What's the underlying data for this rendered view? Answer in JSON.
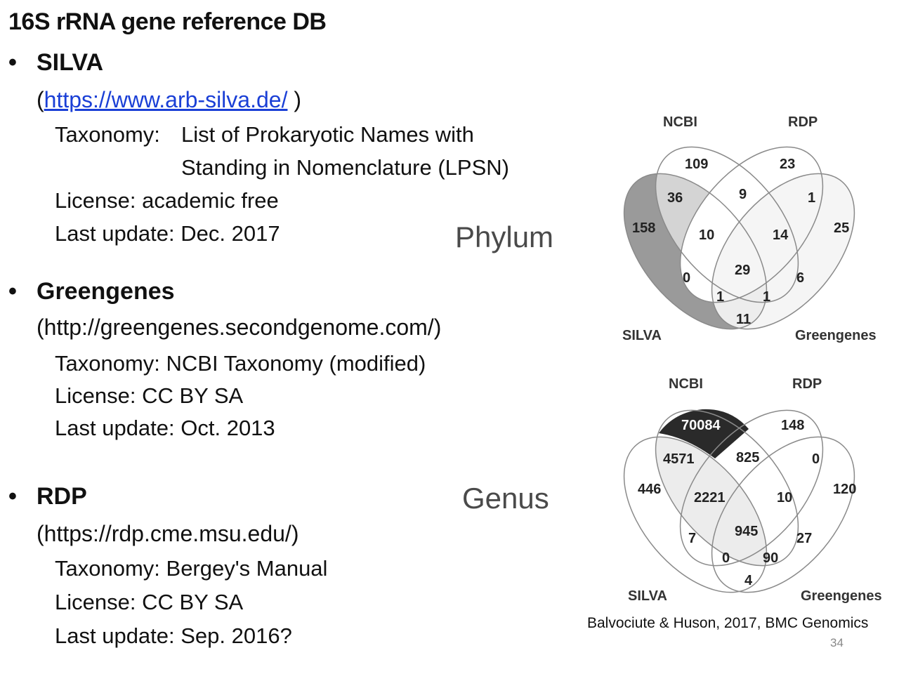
{
  "title": "16S rRNA gene reference DB",
  "databases": [
    {
      "bullet": "•",
      "name": "SILVA",
      "url_open": "(",
      "url": "https://www.arb-silva.de/",
      "url_close": " )",
      "taxonomy_key": "Taxonomy:",
      "taxonomy_line1": "List of Prokaryotic Names with",
      "taxonomy_line2": "Standing in Nomenclature (LPSN)",
      "license": "License: academic free",
      "last_update": "Last update: Dec. 2017"
    },
    {
      "bullet": "•",
      "name": "Greengenes",
      "url_text": "(http://greengenes.secondgenome.com/)",
      "taxonomy": "Taxonomy: NCBI Taxonomy (modified)",
      "license": "License: CC BY SA",
      "last_update": "Last update: Oct. 2013"
    },
    {
      "bullet": "•",
      "name": "RDP",
      "url_text": "(https://rdp.cme.msu.edu/)",
      "taxonomy": "Taxonomy: Bergey's Manual",
      "license": "License: CC BY SA",
      "last_update": "Last update: Sep. 2016?"
    }
  ],
  "venn_phylum": {
    "rank_label": "Phylum",
    "set_labels": {
      "ncbi": "NCBI",
      "rdp": "RDP",
      "silva": "SILVA",
      "greengenes": "Greengenes"
    },
    "regions": {
      "ncbi_only": "109",
      "rdp_only": "23",
      "silva_only": "158",
      "greengenes_only": "25",
      "silva_ncbi": "36",
      "ncbi_rdp": "9",
      "rdp_greengenes": "1",
      "silva_ncbi_rdp": "10",
      "ncbi_rdp_greengenes": "14",
      "all_four": "29",
      "silva_rdp": "0",
      "ncbi_greengenes": "6",
      "silva_rdp_greengenes": "1",
      "silva_ncbi_greengenes": "1",
      "silva_greengenes": "11"
    }
  },
  "venn_genus": {
    "rank_label": "Genus",
    "set_labels": {
      "ncbi": "NCBI",
      "rdp": "RDP",
      "silva": "SILVA",
      "greengenes": "Greengenes"
    },
    "regions": {
      "ncbi_only": "70084",
      "rdp_only": "148",
      "silva_only": "446",
      "greengenes_only": "120",
      "silva_ncbi": "4571",
      "ncbi_rdp": "825",
      "rdp_greengenes": "0",
      "silva_ncbi_rdp": "2221",
      "ncbi_rdp_greengenes": "10",
      "all_four": "945",
      "silva_rdp": "7",
      "ncbi_greengenes": "27",
      "silva_rdp_greengenes": "0",
      "silva_ncbi_greengenes": "90",
      "silva_greengenes": "4"
    }
  },
  "citation": "Balvociute & Huson, 2017, BMC Genomics",
  "page_number": "34",
  "colors": {
    "link": "#1a3fd6",
    "venn_stroke": "#8a8a8a",
    "silva_only_fill_phylum": "#9a9a9a",
    "ncbi_only_fill_phylum": "#c8c8c8",
    "ncbi_only_fill_genus": "#2a2a2a",
    "light_fill": "#ececec"
  }
}
